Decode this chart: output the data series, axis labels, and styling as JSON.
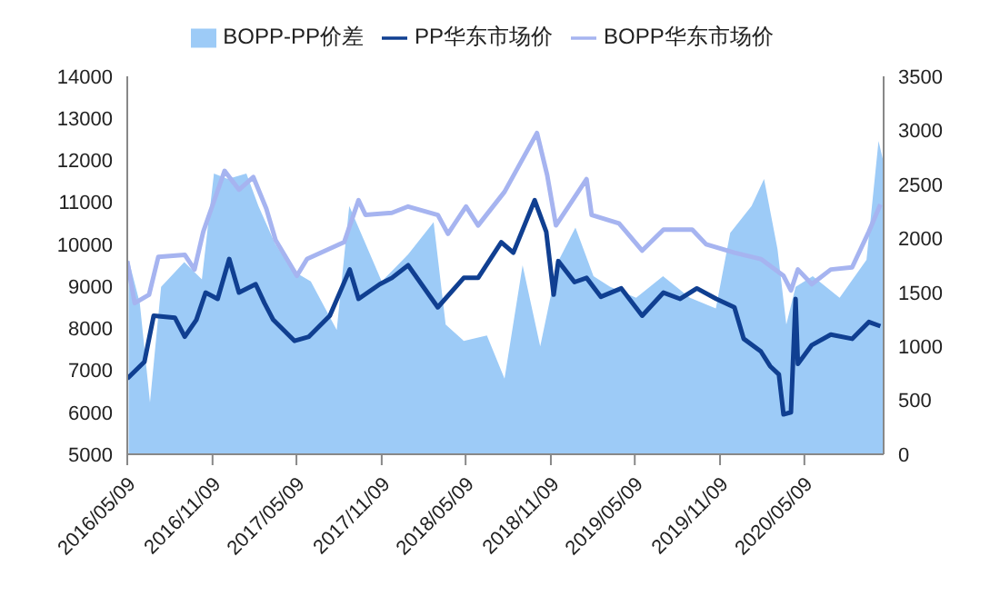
{
  "chart_data": {
    "type": "line",
    "legend": "top",
    "xlim": [
      "2016-05-09",
      "2020-10-27"
    ],
    "xticks": [
      {
        "value": "2016-05-09",
        "label": "2016/05/09"
      },
      {
        "value": "2016-11-09",
        "label": "2016/11/09"
      },
      {
        "value": "2017-05-09",
        "label": "2017/05/09"
      },
      {
        "value": "2017-11-09",
        "label": "2017/11/09"
      },
      {
        "value": "2018-05-09",
        "label": "2018/05/09"
      },
      {
        "value": "2018-11-09",
        "label": "2018/11/09"
      },
      {
        "value": "2019-05-09",
        "label": "2019/05/09"
      },
      {
        "value": "2019-11-09",
        "label": "2019/11/09"
      },
      {
        "value": "2020-05-09",
        "label": "2020/05/09"
      }
    ],
    "ylim": [
      5000,
      14000
    ],
    "yticks": [
      5000,
      6000,
      7000,
      8000,
      9000,
      10000,
      11000,
      12000,
      13000,
      14000
    ],
    "y2lim": [
      0,
      3500
    ],
    "y2ticks": [
      0,
      500,
      1000,
      1500,
      2000,
      2500,
      3000,
      3500
    ],
    "series": [
      {
        "name": "BOPP-PP价差",
        "type": "area",
        "axis": "y2",
        "color": "#9dcbf7",
        "x": [
          "2016-05-12",
          "2016-06-05",
          "2016-06-27",
          "2016-07-21",
          "2016-09-09",
          "2016-10-17",
          "2016-11-12",
          "2016-12-12",
          "2017-01-21",
          "2017-02-16",
          "2017-03-24",
          "2017-05-01",
          "2017-06-09",
          "2017-08-04",
          "2017-08-31",
          "2017-09-30",
          "2017-11-09",
          "2018-01-05",
          "2018-03-01",
          "2018-03-27",
          "2018-05-05",
          "2018-06-24",
          "2018-08-01",
          "2018-09-09",
          "2018-10-17",
          "2018-11-24",
          "2019-01-01",
          "2019-02-09",
          "2019-03-17",
          "2019-05-12",
          "2019-07-09",
          "2019-09-05",
          "2019-10-31",
          "2019-12-01",
          "2020-01-16",
          "2020-02-12",
          "2020-03-12",
          "2020-03-31",
          "2020-04-20",
          "2020-05-27",
          "2020-07-24",
          "2020-09-20",
          "2020-10-16",
          "2020-10-27"
        ],
        "values": [
          1800,
          1400,
          480,
          1550,
          1780,
          1620,
          2600,
          2550,
          2600,
          2300,
          1950,
          1700,
          1600,
          1150,
          2300,
          2000,
          1600,
          1850,
          2150,
          1200,
          1050,
          1100,
          700,
          1750,
          1000,
          1780,
          2100,
          1650,
          1550,
          1450,
          1650,
          1450,
          1350,
          2050,
          2300,
          2550,
          1900,
          1200,
          1550,
          1650,
          1450,
          1800,
          2900,
          2700
        ]
      },
      {
        "name": "PP华东市场价",
        "color": "#103f91",
        "x": [
          "2016-05-09",
          "2016-06-15",
          "2016-07-05",
          "2016-08-20",
          "2016-09-10",
          "2016-10-05",
          "2016-10-25",
          "2016-11-20",
          "2016-12-15",
          "2017-01-05",
          "2017-02-10",
          "2017-03-01",
          "2017-03-20",
          "2017-05-05",
          "2017-06-05",
          "2017-07-20",
          "2017-09-01",
          "2017-09-20",
          "2017-11-05",
          "2017-12-01",
          "2018-01-05",
          "2018-03-10",
          "2018-05-05",
          "2018-06-05",
          "2018-07-25",
          "2018-08-20",
          "2018-10-05",
          "2018-10-30",
          "2018-11-15",
          "2018-11-25",
          "2018-12-30",
          "2019-01-25",
          "2019-02-25",
          "2019-04-10",
          "2019-05-25",
          "2019-07-10",
          "2019-08-15",
          "2019-09-20",
          "2019-11-01",
          "2019-12-10",
          "2019-12-30",
          "2020-02-05",
          "2020-02-25",
          "2020-03-15",
          "2020-03-25",
          "2020-04-10",
          "2020-04-20",
          "2020-04-25",
          "2020-05-25",
          "2020-07-05",
          "2020-08-20",
          "2020-09-25",
          "2020-10-20"
        ],
        "values": [
          6800,
          7200,
          8300,
          8250,
          7800,
          8200,
          8850,
          8700,
          9650,
          8850,
          9050,
          8600,
          8200,
          7700,
          7800,
          8300,
          9400,
          8700,
          9050,
          9200,
          9500,
          8500,
          9200,
          9200,
          10050,
          9800,
          11050,
          10300,
          8800,
          9600,
          9100,
          9200,
          8750,
          8950,
          8300,
          8850,
          8700,
          8950,
          8700,
          8500,
          7750,
          7450,
          7100,
          6900,
          5950,
          6000,
          8700,
          7150,
          7600,
          7850,
          7750,
          8150,
          8050
        ]
      },
      {
        "name": "BOPP华东市场价",
        "color": "#a6b4f0",
        "x": [
          "2016-05-09",
          "2016-05-25",
          "2016-06-25",
          "2016-07-15",
          "2016-09-10",
          "2016-10-01",
          "2016-10-20",
          "2016-12-05",
          "2017-01-05",
          "2017-02-05",
          "2017-03-05",
          "2017-03-25",
          "2017-05-10",
          "2017-06-01",
          "2017-08-20",
          "2017-09-20",
          "2017-10-05",
          "2017-12-01",
          "2018-01-05",
          "2018-03-10",
          "2018-04-01",
          "2018-05-10",
          "2018-06-05",
          "2018-08-01",
          "2018-10-10",
          "2018-11-01",
          "2018-11-20",
          "2019-01-25",
          "2019-02-05",
          "2019-04-05",
          "2019-05-25",
          "2019-07-10",
          "2019-09-10",
          "2019-10-10",
          "2019-12-10",
          "2020-02-05",
          "2020-03-25",
          "2020-04-10",
          "2020-04-25",
          "2020-05-25",
          "2020-07-05",
          "2020-08-20",
          "2020-09-25",
          "2020-10-20"
        ],
        "values": [
          9600,
          8600,
          8800,
          9700,
          9750,
          9400,
          10300,
          11750,
          11300,
          11600,
          10850,
          10100,
          9250,
          9650,
          10050,
          11050,
          10700,
          10750,
          10900,
          10700,
          10250,
          10900,
          10450,
          11250,
          12650,
          11650,
          10450,
          11550,
          10700,
          10500,
          9850,
          10350,
          10350,
          10000,
          9800,
          9650,
          9250,
          8900,
          9400,
          9050,
          9400,
          9450,
          10300,
          10950
        ]
      }
    ]
  }
}
